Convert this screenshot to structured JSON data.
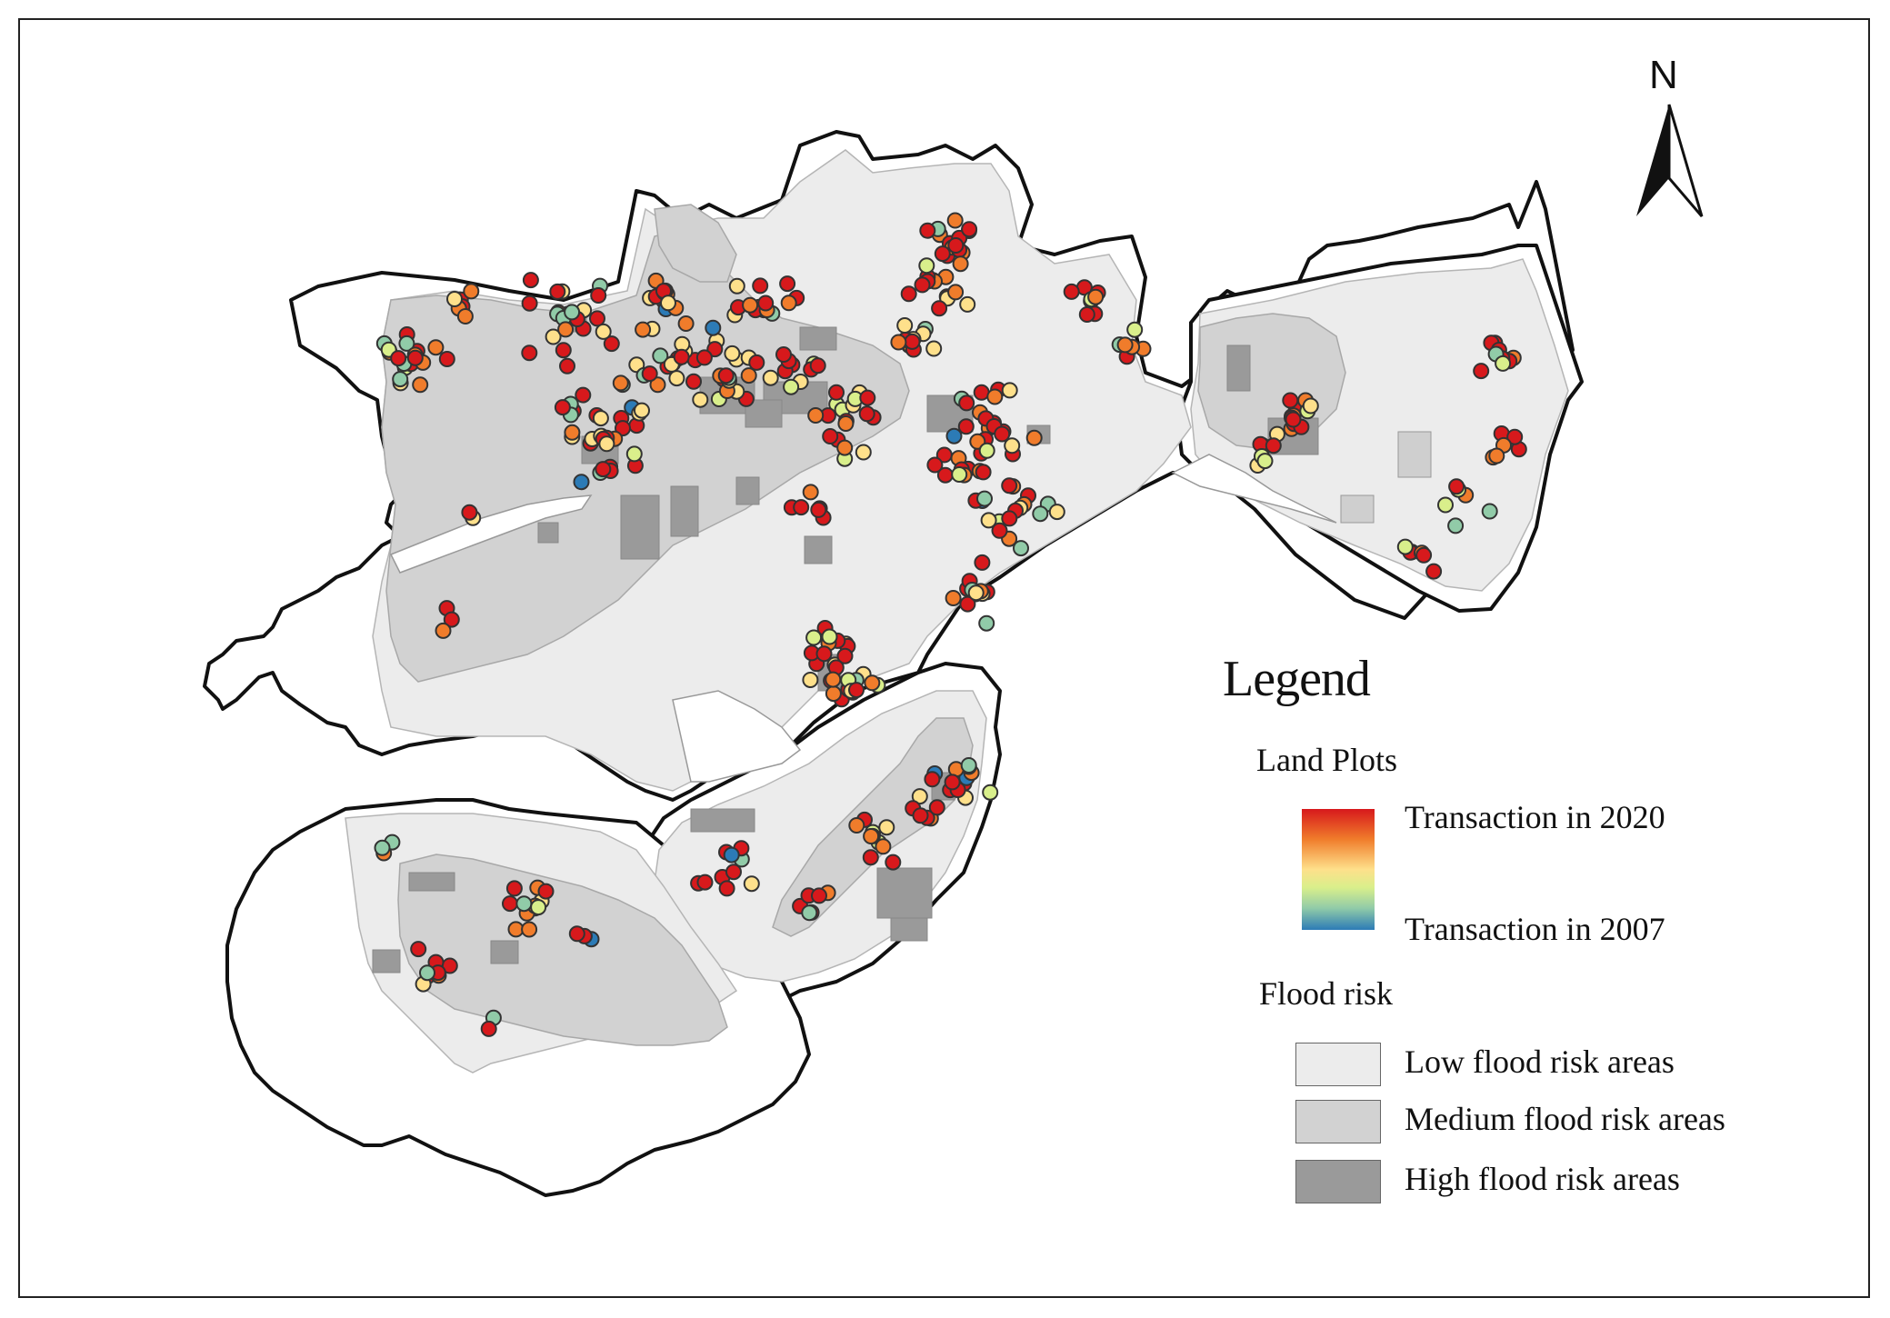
{
  "north_arrow": {
    "label": "N"
  },
  "legend": {
    "title": "Legend",
    "land_plots": {
      "heading": "Land Plots",
      "ramp_top_label": "Transaction in 2020",
      "ramp_bottom_label": "Transaction in 2007",
      "ramp_colors": [
        "#d7191c",
        "#f07c2b",
        "#fee08b",
        "#d9ef8b",
        "#91cba8",
        "#2c7bb6"
      ]
    },
    "flood_risk": {
      "heading": "Flood risk",
      "classes": [
        {
          "label": "Low flood risk areas",
          "color": "#ececec"
        },
        {
          "label": "Medium flood risk areas",
          "color": "#d2d2d2"
        },
        {
          "label": "High flood risk areas",
          "color": "#9a9a9a"
        }
      ]
    }
  }
}
